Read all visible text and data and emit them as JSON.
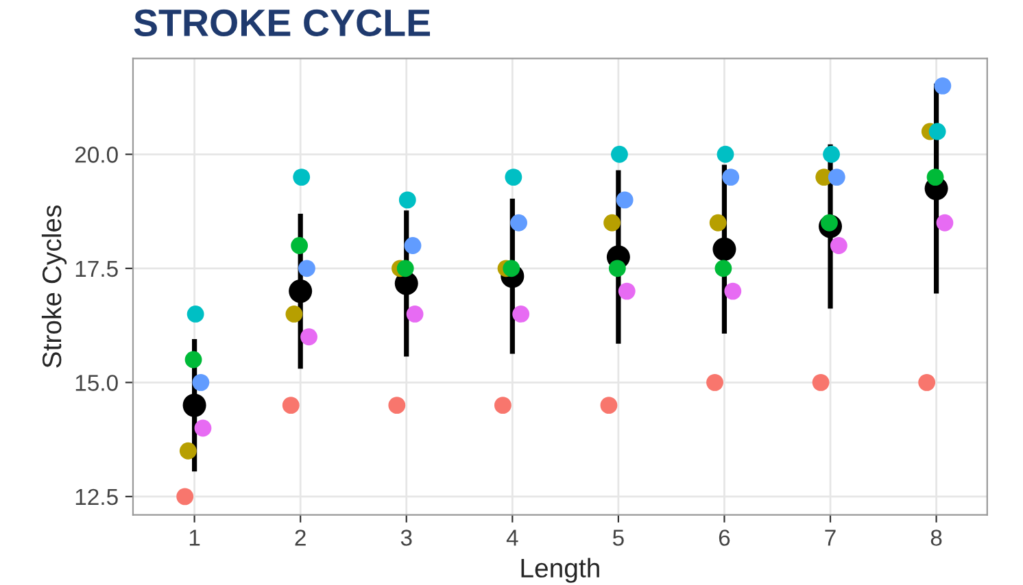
{
  "chart_data": {
    "type": "scatter",
    "title": "STROKE CYCLE",
    "xlabel": "Length",
    "ylabel": "Stroke Cycles",
    "xlim": [
      0.42,
      8.48
    ],
    "xticks": [
      1,
      2,
      3,
      4,
      5,
      6,
      7,
      8
    ],
    "ylim": [
      12.1,
      22.1
    ],
    "yticks": [
      12.5,
      {
        "value": 15,
        "label": "15.0"
      },
      17.5,
      {
        "value": 20,
        "label": "20.0"
      }
    ],
    "grid": true,
    "legend": false,
    "marker": "circle",
    "series": [
      {
        "color": "#f8766d",
        "x": [
          0.91,
          1.91,
          2.91,
          3.91,
          4.91,
          5.91,
          6.91,
          7.91
        ],
        "values": [
          12.5,
          14.5,
          14.5,
          14.5,
          14.5,
          15,
          15,
          15
        ]
      },
      {
        "color": "#b79f00",
        "x": [
          0.94,
          1.94,
          2.94,
          3.94,
          4.94,
          5.94,
          6.94,
          7.94
        ],
        "values": [
          13.5,
          16.5,
          17.5,
          17.5,
          18.5,
          18.5,
          19.5,
          20.5
        ]
      },
      {
        "color": "#00ba38",
        "x": [
          0.99,
          1.99,
          2.99,
          3.99,
          4.99,
          5.99,
          6.99,
          7.99
        ],
        "values": [
          15.5,
          18,
          17.5,
          17.5,
          17.5,
          17.5,
          18.5,
          19.5
        ]
      },
      {
        "color": "#00bfc4",
        "x": [
          1.01,
          2.01,
          3.01,
          4.01,
          5.01,
          6.01,
          7.01,
          8.01
        ],
        "values": [
          16.5,
          19.5,
          19,
          19.5,
          20,
          20,
          20,
          20.5
        ]
      },
      {
        "color": "#619cff",
        "x": [
          1.06,
          2.06,
          3.06,
          4.06,
          5.06,
          6.06,
          7.06,
          8.06
        ],
        "values": [
          15,
          17.5,
          18,
          18.5,
          19,
          19.5,
          19.5,
          21.5
        ]
      },
      {
        "color": "#e76bf3",
        "x": [
          1.08,
          2.08,
          3.08,
          4.08,
          5.08,
          6.08,
          7.08,
          8.08
        ],
        "values": [
          14,
          16,
          16.5,
          16.5,
          17,
          17,
          18,
          18.5
        ]
      },
      {
        "color": "#000000",
        "x": [
          1,
          2,
          3,
          4,
          5,
          6,
          7,
          8
        ],
        "values": [
          14.5,
          17.0,
          17.17,
          17.33,
          17.75,
          17.92,
          18.42,
          19.25
        ],
        "errors": [
          1.45,
          1.7,
          1.6,
          1.7,
          1.9,
          1.85,
          1.8,
          2.3
        ]
      }
    ]
  }
}
